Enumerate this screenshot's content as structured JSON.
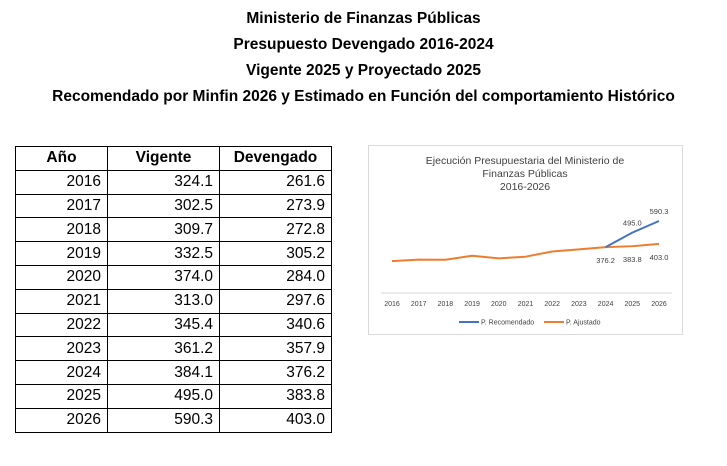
{
  "titles": [
    "Ministerio de Finanzas Públicas",
    "Presupuesto Devengado 2016-2024",
    "Vigente 2025 y Proyectado 2025",
    "Recomendado por Minfin 2026 y Estimado en Función del comportamiento Histórico"
  ],
  "table": {
    "headers": [
      "Año",
      "Vigente",
      "Devengado"
    ],
    "rows": [
      [
        "2016",
        "324.1",
        "261.6"
      ],
      [
        "2017",
        "302.5",
        "273.9"
      ],
      [
        "2018",
        "309.7",
        "272.8"
      ],
      [
        "2019",
        "332.5",
        "305.2"
      ],
      [
        "2020",
        "374.0",
        "284.0"
      ],
      [
        "2021",
        "313.0",
        "297.6"
      ],
      [
        "2022",
        "345.4",
        "340.6"
      ],
      [
        "2023",
        "361.2",
        "357.9"
      ],
      [
        "2024",
        "384.1",
        "376.2"
      ],
      [
        "2025",
        "495.0",
        "383.8"
      ],
      [
        "2026",
        "590.3",
        "403.0"
      ]
    ]
  },
  "chart_data": {
    "type": "line",
    "title": [
      "Ejecución Presupuestaria del Ministerio de",
      "Finanzas Públicas",
      "2016-2026"
    ],
    "categories": [
      "2016",
      "2017",
      "2018",
      "2019",
      "2020",
      "2021",
      "2022",
      "2023",
      "2024",
      "2025",
      "2026"
    ],
    "ylim": [
      0,
      1000
    ],
    "grid": false,
    "legend": "bottom",
    "series": [
      {
        "name": "P. Recomendado",
        "color": "#4472C4",
        "values": [
          null,
          null,
          null,
          null,
          null,
          null,
          null,
          null,
          376.2,
          495.0,
          590.3
        ],
        "labels": [
          null,
          null,
          null,
          null,
          null,
          null,
          null,
          null,
          null,
          "495.0",
          "590.3"
        ]
      },
      {
        "name": "P. Ajustado",
        "color": "#ED7D31",
        "values": [
          261.6,
          273.9,
          272.8,
          305.2,
          284.0,
          297.6,
          340.6,
          357.9,
          376.2,
          383.8,
          403.0
        ],
        "labels": [
          null,
          null,
          null,
          null,
          null,
          null,
          null,
          null,
          "376.2",
          "383.8",
          "403.0"
        ]
      }
    ]
  }
}
